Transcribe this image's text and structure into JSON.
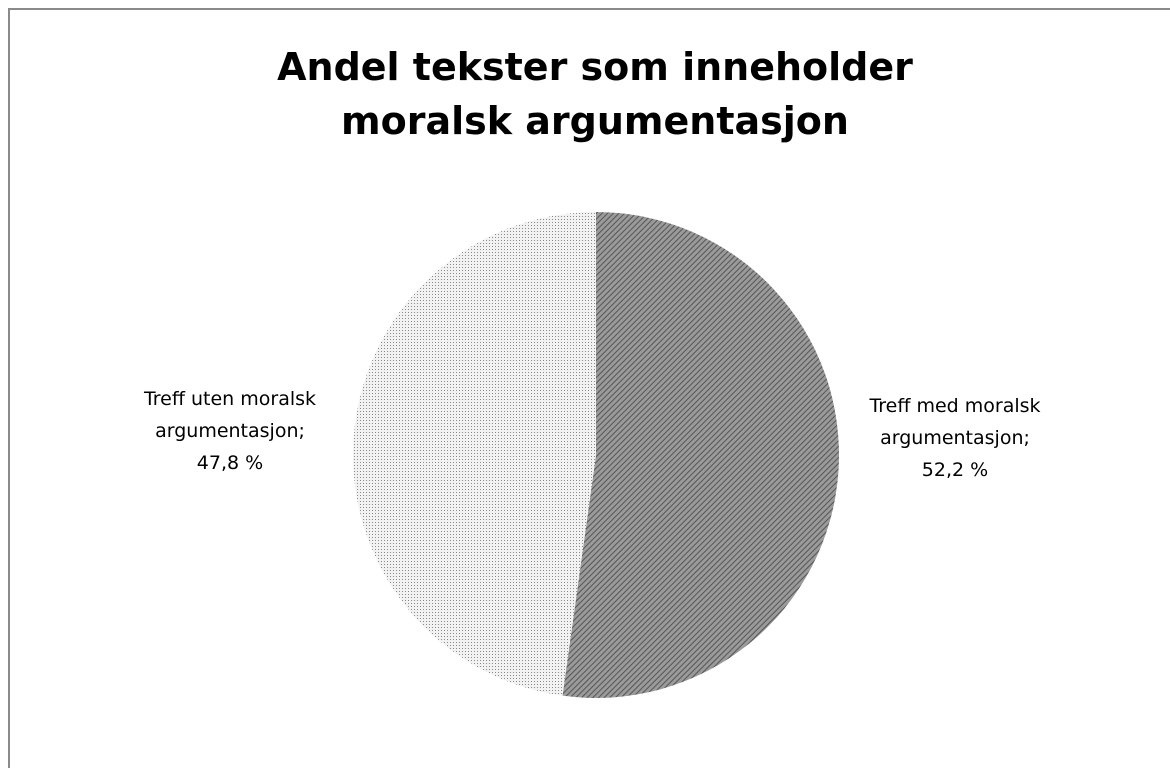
{
  "chart_data": {
    "type": "pie",
    "title": "Andel tekster som inneholder moralsk argumentasjon",
    "categories": [
      "Treff med moralsk argumentasjon;",
      "Treff uten moralsk argumentasjon;"
    ],
    "values": [
      52.2,
      47.8
    ],
    "value_labels": [
      "52,2 %",
      "47,8 %"
    ],
    "colors": [
      "#7a7a7a",
      "#e2e2e2"
    ]
  }
}
